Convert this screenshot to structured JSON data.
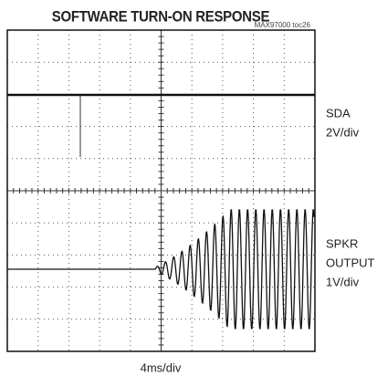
{
  "title": "SOFTWARE TURN-ON RESPONSE",
  "part_note": "MAX97000 toc26",
  "channels": [
    {
      "label_lines": [
        "SDA"
      ],
      "scale": "2V/div"
    },
    {
      "label_lines": [
        "SPKR",
        "OUTPUT"
      ],
      "scale": "1V/div"
    }
  ],
  "timebase": "4ms/div"
}
